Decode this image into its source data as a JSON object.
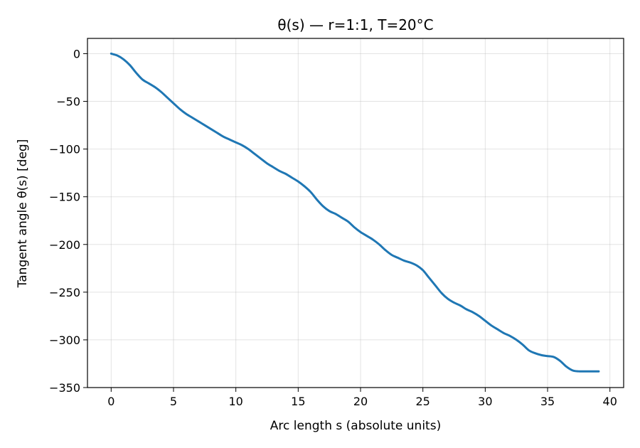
{
  "chart_data": {
    "type": "line",
    "title": "θ(s) — r=1:1, T=20°C",
    "xlabel": "Arc length s (absolute units)",
    "ylabel": "Tangent angle θ(s) [deg]",
    "xlim": [
      -1.9,
      41.1
    ],
    "ylim": [
      -350,
      16
    ],
    "xticks": [
      0,
      5,
      10,
      15,
      20,
      25,
      30,
      35,
      40
    ],
    "yticks": [
      0,
      -50,
      -100,
      -150,
      -200,
      -250,
      -300,
      -350
    ],
    "xtick_labels": [
      "0",
      "5",
      "10",
      "15",
      "20",
      "25",
      "30",
      "35",
      "40"
    ],
    "ytick_labels": [
      "0",
      "−50",
      "−100",
      "−150",
      "−200",
      "−250",
      "−300",
      "−350"
    ],
    "grid": true,
    "legend": "none",
    "series": [
      {
        "color": "#1f77b4",
        "x": [
          0,
          0.5,
          1.0,
          1.5,
          2.0,
          2.5,
          3.0,
          3.5,
          4.0,
          4.5,
          5.0,
          5.5,
          6.0,
          6.5,
          7.0,
          7.5,
          8.0,
          8.5,
          9.0,
          9.5,
          10.0,
          10.5,
          11.0,
          11.5,
          12.0,
          12.5,
          13.0,
          13.5,
          14.0,
          14.5,
          15.0,
          15.5,
          16.0,
          16.5,
          17.0,
          17.5,
          18.0,
          18.5,
          19.0,
          19.5,
          20.0,
          20.5,
          21.0,
          21.5,
          22.0,
          22.5,
          23.0,
          23.5,
          24.0,
          24.5,
          25.0,
          25.5,
          26.0,
          26.5,
          27.0,
          27.5,
          28.0,
          28.5,
          29.0,
          29.5,
          30.0,
          30.5,
          31.0,
          31.5,
          32.0,
          32.5,
          33.0,
          33.5,
          34.0,
          34.5,
          35.0,
          35.5,
          36.0,
          36.5,
          37.0,
          37.5,
          38.0,
          38.5,
          39.1
        ],
        "y": [
          0,
          -2,
          -6,
          -12,
          -20,
          -27,
          -31,
          -35,
          -40,
          -46,
          -52,
          -58,
          -63,
          -67,
          -71,
          -75,
          -79,
          -83,
          -87,
          -90,
          -93,
          -96,
          -100,
          -105,
          -110,
          -115,
          -119,
          -123,
          -126,
          -130,
          -134,
          -139,
          -145,
          -153,
          -160,
          -165,
          -168,
          -172,
          -176,
          -182,
          -187,
          -191,
          -195,
          -200,
          -206,
          -211,
          -214,
          -217,
          -219,
          -222,
          -227,
          -235,
          -243,
          -251,
          -257,
          -261,
          -264,
          -268,
          -271,
          -275,
          -280,
          -285,
          -289,
          -293,
          -296,
          -300,
          -305,
          -311,
          -314,
          -316,
          -317,
          -318,
          -322,
          -328,
          -332,
          -333,
          -333,
          -333,
          -333
        ]
      }
    ]
  }
}
